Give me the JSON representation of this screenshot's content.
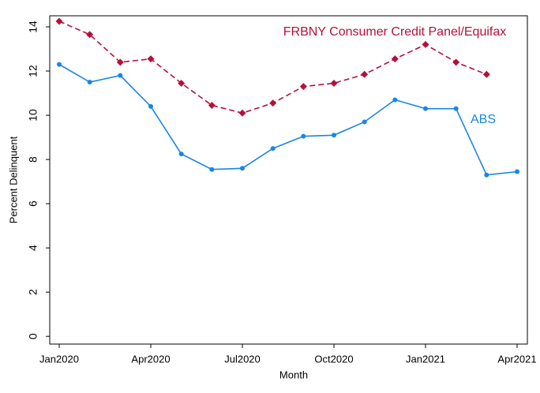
{
  "chart_data": {
    "type": "line",
    "categories": [
      "Jan2020",
      null,
      null,
      "Apr2020",
      null,
      null,
      "Jul2020",
      null,
      null,
      "Oct2020",
      null,
      null,
      "Jan2021",
      null,
      null,
      "Apr2021"
    ],
    "series": [
      {
        "name": "FRBNY Consumer Credit Panel/Equifax",
        "color": "#b5103c",
        "dashed": true,
        "marker": "diamond",
        "values": [
          14.25,
          13.65,
          12.4,
          12.55,
          11.45,
          10.45,
          10.1,
          10.55,
          11.3,
          11.45,
          11.85,
          12.55,
          13.2,
          12.4,
          11.85,
          null
        ]
      },
      {
        "name": "ABS",
        "color": "#1a85e8",
        "dashed": false,
        "marker": "circle",
        "values": [
          12.3,
          11.5,
          11.8,
          10.4,
          8.25,
          7.55,
          7.6,
          8.5,
          9.05,
          9.1,
          9.7,
          10.7,
          10.3,
          10.3,
          7.3,
          7.45
        ]
      }
    ],
    "ylim": [
      -0.35,
      14.5
    ],
    "yticks": [
      0,
      2,
      4,
      6,
      8,
      10,
      12,
      14
    ],
    "x_label": "Month",
    "y_label": "Percent Delinquent",
    "grid": false
  }
}
